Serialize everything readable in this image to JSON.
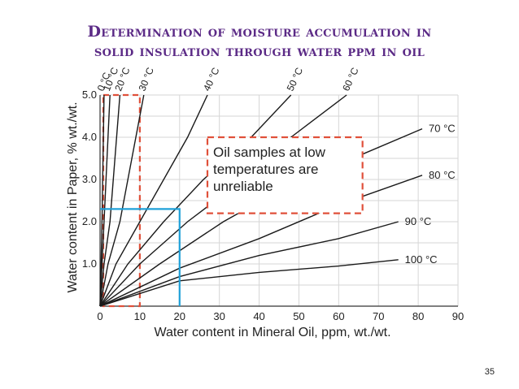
{
  "slide": {
    "title_line_1": "Determination of moisture accumulation in",
    "title_line_2": "solid insulation through water ppm in oil",
    "page_number": "35"
  },
  "colors": {
    "title": "#5b2a86",
    "curves": "#1a1a1a",
    "unreliable_region": "#e0503a",
    "example_lookup": "#1fa0d8"
  },
  "chart_data": {
    "type": "line",
    "xlabel": "Water content in Mineral Oil, ppm, wt./wt.",
    "ylabel": "Water content in Paper, % wt./wt.",
    "xlim": [
      0,
      90
    ],
    "ylim": [
      0,
      5
    ],
    "x_ticks": [
      "0",
      "10",
      "20",
      "30",
      "40",
      "50",
      "60",
      "70",
      "80",
      "90"
    ],
    "y_ticks": [
      "1.0",
      "2.0",
      "3.0",
      "4.0",
      "5.0"
    ],
    "grid": true,
    "series": [
      {
        "name": "0 °C",
        "points": [
          [
            0,
            0
          ],
          [
            0.5,
            2.0
          ],
          [
            1,
            5.0
          ]
        ]
      },
      {
        "name": "10 °C",
        "points": [
          [
            0,
            0
          ],
          [
            1,
            2.0
          ],
          [
            2.5,
            5.0
          ]
        ]
      },
      {
        "name": "20 °C",
        "points": [
          [
            0,
            0
          ],
          [
            1,
            1.0
          ],
          [
            2.5,
            2.0
          ],
          [
            5,
            5.0
          ]
        ]
      },
      {
        "name": "30 °C",
        "points": [
          [
            0,
            0
          ],
          [
            2,
            1.0
          ],
          [
            5,
            2.0
          ],
          [
            11,
            5.0
          ]
        ]
      },
      {
        "name": "40 °C",
        "points": [
          [
            0,
            0
          ],
          [
            4,
            1.0
          ],
          [
            10,
            2.0
          ],
          [
            22,
            4.0
          ],
          [
            27,
            5.0
          ]
        ]
      },
      {
        "name": "50 °C",
        "points": [
          [
            0,
            0
          ],
          [
            7,
            1.0
          ],
          [
            16,
            2.0
          ],
          [
            26,
            3.0
          ],
          [
            38,
            4.0
          ],
          [
            48,
            5.0
          ]
        ]
      },
      {
        "name": "60 °C",
        "points": [
          [
            0,
            0
          ],
          [
            10,
            1.0
          ],
          [
            22,
            2.0
          ],
          [
            36,
            3.0
          ],
          [
            48,
            4.0
          ],
          [
            62,
            5.0
          ]
        ]
      },
      {
        "name": "70 °C",
        "points": [
          [
            0,
            0
          ],
          [
            15,
            1.0
          ],
          [
            31,
            2.0
          ],
          [
            50,
            3.0
          ],
          [
            66,
            3.6
          ],
          [
            81,
            4.2
          ]
        ]
      },
      {
        "name": "80 °C",
        "points": [
          [
            0,
            0
          ],
          [
            20,
            0.9
          ],
          [
            40,
            1.6
          ],
          [
            60,
            2.4
          ],
          [
            81,
            3.1
          ]
        ]
      },
      {
        "name": "90 °C",
        "points": [
          [
            0,
            0
          ],
          [
            20,
            0.7
          ],
          [
            40,
            1.2
          ],
          [
            60,
            1.6
          ],
          [
            75,
            2.0
          ]
        ]
      },
      {
        "name": "100 °C",
        "points": [
          [
            0,
            0
          ],
          [
            10,
            0.3
          ],
          [
            20,
            0.6
          ],
          [
            40,
            0.8
          ],
          [
            60,
            0.95
          ],
          [
            75,
            1.1
          ]
        ]
      }
    ],
    "annotations": [
      {
        "text_lines": [
          "Oil samples at low",
          "temperatures are",
          "unreliable"
        ]
      }
    ],
    "unreliable_region": {
      "x": [
        0,
        10
      ],
      "y": [
        0,
        5.0
      ]
    },
    "unreliable_box_anchor": {
      "x": [
        27,
        66
      ],
      "y": [
        2.2,
        4.0
      ]
    },
    "example_lookup": {
      "x": 20,
      "y": 2.3
    }
  }
}
